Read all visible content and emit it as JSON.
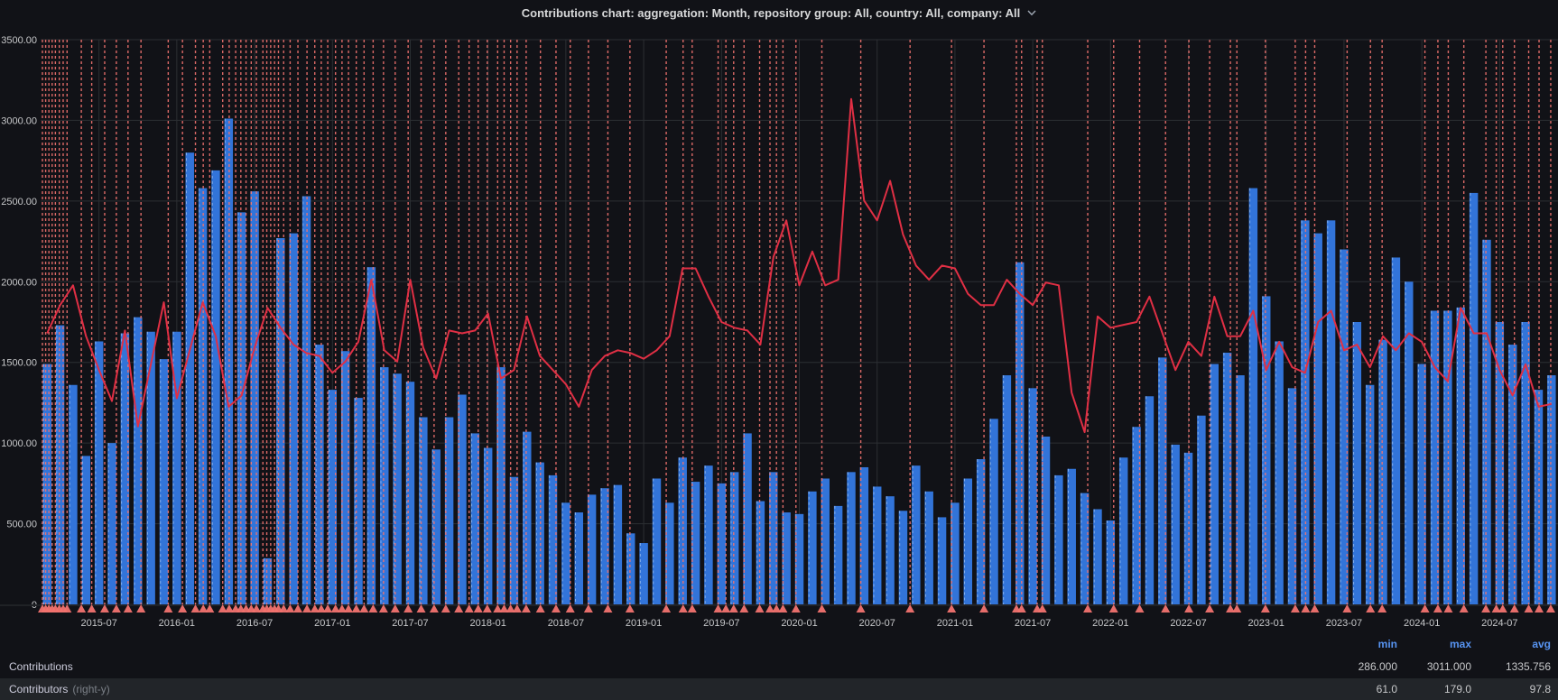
{
  "title": {
    "text": "Contributions chart: aggregation: Month, repository group: All, country: All, company: All"
  },
  "colors": {
    "background": "#111217",
    "bar": "#3274d9",
    "bar_edge": "#9ec1ee",
    "line": "#e02f44",
    "annotation": "#f2736f",
    "grid": "#2c2f33",
    "axis_text": "#c7c8ca",
    "title_text": "#d8d9da",
    "legend_header": "#5794f2",
    "legend_row_alt_bg": "#222529"
  },
  "legend": {
    "headers": [
      "min",
      "max",
      "avg"
    ],
    "rows": [
      {
        "label": "Contributions",
        "suffix": "",
        "min": "286.000",
        "max": "3011.000",
        "avg": "1335.756"
      },
      {
        "label": "Contributors",
        "suffix": "(right-y)",
        "min": "61.0",
        "max": "179.0",
        "avg": "97.8"
      }
    ]
  },
  "chart_data": {
    "type": "bar",
    "title": "Contributions chart: aggregation: Month, repository group: All, country: All, company: All",
    "xlabel": "",
    "ylabel_left": "Contributions",
    "ylabel_right": "Contributors",
    "ylim_left": [
      0,
      3500
    ],
    "ylim_right": [
      0,
      200
    ],
    "grid": true,
    "legend_position": "bottom",
    "y_ticks_left": [
      {
        "v": 3500,
        "label": "3500.00"
      },
      {
        "v": 3000,
        "label": "3000.00"
      },
      {
        "v": 2500,
        "label": "2500.00"
      },
      {
        "v": 2000,
        "label": "2000.00"
      },
      {
        "v": 1500,
        "label": "1500.00"
      },
      {
        "v": 1000,
        "label": "1000.00"
      },
      {
        "v": 500,
        "label": "500.00"
      },
      {
        "v": 0,
        "label": "0"
      }
    ],
    "x_tick_labels": [
      "2015-07",
      "2016-01",
      "2016-07",
      "2017-01",
      "2017-07",
      "2018-01",
      "2018-07",
      "2019-01",
      "2019-07",
      "2020-01",
      "2020-07",
      "2021-01",
      "2021-07",
      "2022-01",
      "2022-07",
      "2023-01",
      "2023-07",
      "2024-01",
      "2024-07"
    ],
    "categories": [
      "2015-03",
      "2015-04",
      "2015-05",
      "2015-06",
      "2015-07",
      "2015-08",
      "2015-09",
      "2015-10",
      "2015-11",
      "2015-12",
      "2016-01",
      "2016-02",
      "2016-03",
      "2016-04",
      "2016-05",
      "2016-06",
      "2016-07",
      "2016-08",
      "2016-09",
      "2016-10",
      "2016-11",
      "2016-12",
      "2017-01",
      "2017-02",
      "2017-03",
      "2017-04",
      "2017-05",
      "2017-06",
      "2017-07",
      "2017-08",
      "2017-09",
      "2017-10",
      "2017-11",
      "2017-12",
      "2018-01",
      "2018-02",
      "2018-03",
      "2018-04",
      "2018-05",
      "2018-06",
      "2018-07",
      "2018-08",
      "2018-09",
      "2018-10",
      "2018-11",
      "2018-12",
      "2019-01",
      "2019-02",
      "2019-03",
      "2019-04",
      "2019-05",
      "2019-06",
      "2019-07",
      "2019-08",
      "2019-09",
      "2019-10",
      "2019-11",
      "2019-12",
      "2020-01",
      "2020-02",
      "2020-03",
      "2020-04",
      "2020-05",
      "2020-06",
      "2020-07",
      "2020-08",
      "2020-09",
      "2020-10",
      "2020-11",
      "2020-12",
      "2021-01",
      "2021-02",
      "2021-03",
      "2021-04",
      "2021-05",
      "2021-06",
      "2021-07",
      "2021-08",
      "2021-09",
      "2021-10",
      "2021-11",
      "2021-12",
      "2022-01",
      "2022-02",
      "2022-03",
      "2022-04",
      "2022-05",
      "2022-06",
      "2022-07",
      "2022-08",
      "2022-09",
      "2022-10",
      "2022-11",
      "2022-12",
      "2023-01",
      "2023-02",
      "2023-03",
      "2023-04",
      "2023-05",
      "2023-06",
      "2023-07",
      "2023-08",
      "2023-09",
      "2023-10",
      "2023-11",
      "2023-12",
      "2024-01",
      "2024-02",
      "2024-03",
      "2024-04",
      "2024-05",
      "2024-06",
      "2024-07",
      "2024-08",
      "2024-09",
      "2024-10",
      "2024-11"
    ],
    "series": [
      {
        "name": "Contributions",
        "type": "bar",
        "axis": "left",
        "color": "#3274d9",
        "values": [
          1490,
          1730,
          1360,
          920,
          1630,
          1000,
          1680,
          1780,
          1690,
          1520,
          1690,
          2800,
          2580,
          2690,
          3011,
          2430,
          2560,
          286,
          2270,
          2300,
          2530,
          1610,
          1330,
          1570,
          1280,
          2090,
          1470,
          1430,
          1380,
          1160,
          960,
          1160,
          1300,
          1060,
          970,
          1470,
          790,
          1070,
          880,
          800,
          630,
          570,
          680,
          720,
          740,
          440,
          380,
          780,
          630,
          910,
          760,
          860,
          750,
          820,
          1060,
          640,
          820,
          570,
          560,
          700,
          780,
          610,
          820,
          850,
          730,
          670,
          580,
          860,
          700,
          540,
          630,
          780,
          900,
          1150,
          1420,
          2120,
          1340,
          1040,
          800,
          840,
          690,
          590,
          520,
          910,
          1100,
          1290,
          1530,
          990,
          940,
          1170,
          1490,
          1560,
          1420,
          2580,
          1910,
          1630,
          1340,
          2380,
          2300,
          2380,
          2200,
          1750,
          1360,
          1640,
          2150,
          2000,
          1490,
          1820,
          1820,
          1840,
          2550,
          2260,
          1750,
          1610,
          1750,
          1330,
          1420
        ],
        "min": 286.0,
        "max": 3011.0,
        "avg": 1335.756
      },
      {
        "name": "Contributors",
        "type": "line",
        "axis": "right",
        "color": "#e02f44",
        "values": [
          96,
          106,
          113,
          95,
          83,
          72,
          97,
          63,
          85,
          107,
          73,
          90,
          107,
          95,
          70,
          74,
          91,
          105,
          98,
          92,
          89,
          88,
          82,
          86,
          93,
          115,
          90,
          86,
          115,
          91,
          80,
          97,
          96,
          97,
          103,
          80,
          83,
          102,
          88,
          83,
          78,
          70,
          83,
          88,
          90,
          89,
          87,
          90,
          95,
          119,
          119,
          109,
          100,
          98,
          97,
          92,
          123,
          136,
          113,
          125,
          113,
          115,
          179,
          143,
          136,
          150,
          131,
          120,
          115,
          120,
          119,
          110,
          106,
          106,
          115,
          110,
          106,
          114,
          113,
          75,
          61,
          102,
          98,
          99,
          100,
          109,
          96,
          83,
          93,
          88,
          109,
          95,
          95,
          104,
          83,
          93,
          84,
          82,
          100,
          104,
          90,
          92,
          84,
          95,
          90,
          96,
          93,
          84,
          79,
          105,
          96,
          96,
          83,
          74,
          85,
          70,
          71
        ],
        "min": 61.0,
        "max": 179.0,
        "avg": 97.8
      }
    ],
    "annotations_month_idx": [
      0.0,
      0.25,
      0.5,
      0.75,
      1.0,
      1.3,
      1.6,
      1.9,
      3.0,
      3.8,
      4.8,
      5.7,
      6.6,
      7.6,
      9.7,
      10.8,
      11.8,
      12.4,
      12.9,
      13.9,
      14.4,
      14.9,
      15.3,
      15.7,
      16.1,
      16.5,
      17.0,
      17.3,
      17.6,
      17.9,
      18.2,
      18.6,
      19.1,
      19.7,
      20.4,
      21.0,
      21.5,
      22.0,
      22.6,
      23.1,
      23.6,
      24.2,
      24.8,
      25.5,
      26.3,
      27.2,
      28.2,
      29.2,
      30.2,
      31.1,
      32.1,
      32.9,
      33.6,
      34.3,
      35.1,
      35.6,
      36.1,
      36.6,
      37.3,
      38.4,
      39.6,
      40.7,
      42.1,
      43.6,
      45.3,
      48.1,
      49.4,
      50.1,
      52.1,
      52.7,
      53.3,
      54.1,
      55.3,
      56.1,
      56.6,
      57.1,
      58.1,
      60.1,
      63.1,
      66.9,
      70.1,
      72.6,
      75.1,
      75.5,
      76.7,
      77.1,
      80.6,
      82.6,
      84.6,
      86.6,
      88.4,
      90.0,
      91.6,
      92.1,
      94.3,
      96.6,
      97.4,
      98.1,
      100.6,
      102.4,
      103.3,
      106.6,
      107.6,
      108.4,
      109.6,
      111.3,
      112.1,
      112.6,
      113.5,
      114.6,
      115.4,
      116.3
    ]
  }
}
